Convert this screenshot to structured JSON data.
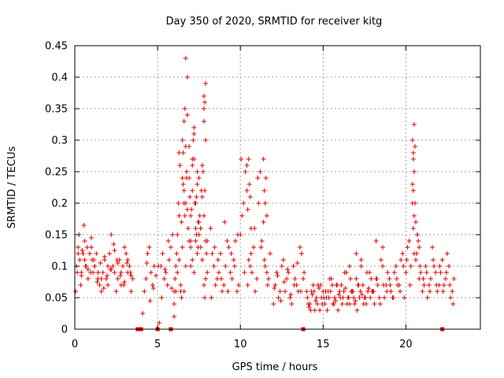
{
  "chart_data": {
    "type": "scatter",
    "title": "Day 350 of 2020, SRMTID for receiver kitg",
    "xlabel": "GPS time / hours",
    "ylabel": "SRMTID / TECUs",
    "xlim": [
      0,
      24.5
    ],
    "ylim": [
      0,
      0.45
    ],
    "x_ticks": [
      0,
      5,
      10,
      15,
      20
    ],
    "x_tick_labels": [
      "0",
      "5",
      "10",
      "15",
      "20"
    ],
    "y_ticks": [
      0,
      0.05,
      0.1,
      0.15,
      0.2,
      0.25,
      0.3,
      0.35,
      0.4,
      0.45
    ],
    "y_tick_labels": [
      "0",
      "0.05",
      "0.1",
      "0.15",
      "0.2",
      "0.25",
      "0.3",
      "0.35",
      "0.4",
      "0.45"
    ],
    "grid": true,
    "marker": "+",
    "color": "#e00000",
    "series": [
      {
        "name": "SRMTID",
        "x": [
          0.05,
          0.1,
          0.2,
          0.25,
          0.3,
          0.4,
          0.5,
          0.55,
          0.6,
          0.7,
          0.8,
          0.9,
          1.0,
          1.05,
          1.1,
          1.2,
          1.3,
          1.4,
          1.5,
          1.6,
          1.7,
          1.8,
          1.9,
          2.0,
          2.1,
          2.2,
          2.3,
          2.4,
          2.5,
          2.6,
          2.7,
          2.8,
          2.9,
          3.0,
          3.1,
          3.2,
          3.3,
          3.4,
          3.5,
          0.15,
          0.35,
          0.45,
          0.65,
          0.75,
          0.95,
          1.15,
          1.35,
          1.55,
          1.75,
          1.95,
          2.15,
          2.35,
          2.55,
          2.75,
          2.95,
          3.15,
          3.35,
          0.2,
          0.4,
          0.6,
          0.8,
          1.0,
          1.2,
          1.4,
          1.6,
          1.8,
          2.0,
          2.2,
          2.4,
          2.6,
          2.8,
          3.0,
          3.2,
          3.4,
          4.1,
          4.2,
          4.3,
          4.4,
          4.5,
          4.6,
          4.7,
          4.8,
          4.9,
          4.35,
          4.55,
          4.75,
          5.1,
          5.2,
          5.3,
          5.4,
          5.5,
          5.6,
          5.7,
          5.8,
          5.9,
          6.0,
          5.25,
          5.45,
          5.65,
          5.85,
          5.05,
          6.0,
          6.1,
          6.2,
          6.3,
          6.4,
          6.5,
          6.6,
          6.7,
          6.8,
          6.9,
          7.0,
          7.1,
          7.2,
          7.3,
          7.4,
          7.5,
          7.6,
          7.7,
          7.8,
          7.9,
          8.0,
          6.05,
          6.15,
          6.25,
          6.35,
          6.45,
          6.55,
          6.65,
          6.75,
          6.85,
          6.95,
          7.05,
          7.15,
          7.25,
          7.35,
          7.45,
          7.55,
          7.65,
          7.75,
          7.85,
          7.95,
          6.1,
          6.3,
          6.5,
          6.7,
          6.9,
          7.1,
          7.3,
          7.5,
          7.7,
          7.9,
          6.2,
          6.4,
          6.6,
          6.8,
          7.0,
          7.2,
          7.4,
          7.6,
          7.8,
          8.0,
          6.5,
          6.6,
          6.7,
          6.8,
          6.9,
          7.0,
          7.1,
          7.2,
          7.3,
          7.4,
          7.5,
          7.6,
          7.7,
          7.8,
          7.9,
          6.3,
          6.45,
          6.55,
          6.65,
          6.75,
          7.0,
          7.1,
          7.35,
          7.45,
          7.8,
          7.85,
          7.9,
          6.0,
          6.6,
          6.7,
          7.2,
          7.8,
          7.85,
          8.2,
          8.4,
          8.6,
          8.8,
          9.0,
          9.2,
          9.4,
          9.6,
          9.8,
          10.0,
          10.2,
          10.4,
          10.6,
          10.8,
          11.0,
          11.2,
          11.4,
          11.6,
          11.8,
          8.3,
          8.5,
          8.7,
          8.9,
          9.1,
          9.3,
          9.5,
          9.7,
          9.9,
          10.1,
          10.3,
          10.5,
          10.7,
          10.9,
          11.1,
          11.3,
          11.5,
          11.7,
          8.25,
          8.45,
          8.65,
          8.85,
          9.05,
          9.25,
          9.45,
          9.65,
          9.85,
          10.05,
          10.25,
          10.45,
          10.65,
          10.85,
          11.05,
          11.25,
          11.45,
          11.65,
          10.4,
          10.5,
          10.55,
          10.6,
          10.45,
          10.65,
          11.4,
          11.5,
          11.6,
          11.45,
          11.55,
          12.0,
          12.2,
          12.4,
          12.6,
          12.8,
          13.0,
          13.2,
          13.4,
          13.6,
          13.8,
          12.1,
          12.3,
          12.5,
          12.7,
          12.9,
          13.1,
          13.3,
          13.5,
          13.7,
          12.05,
          12.25,
          12.45,
          12.65,
          12.85,
          13.05,
          13.25,
          13.45,
          13.65,
          13.85,
          14.0,
          14.2,
          14.4,
          14.6,
          14.8,
          15.0,
          15.2,
          15.4,
          15.6,
          15.8,
          16.0,
          16.2,
          16.4,
          16.6,
          16.8,
          17.0,
          17.2,
          17.4,
          17.6,
          17.8,
          18.0,
          18.2,
          18.4,
          18.6,
          18.8,
          14.1,
          14.3,
          14.5,
          14.7,
          14.9,
          15.1,
          15.3,
          15.5,
          15.7,
          15.9,
          16.1,
          16.3,
          16.5,
          16.7,
          16.9,
          17.1,
          17.3,
          17.5,
          17.7,
          17.9,
          18.1,
          18.3,
          18.5,
          18.7,
          18.9,
          14.05,
          14.25,
          14.45,
          14.65,
          14.85,
          15.05,
          15.25,
          15.45,
          15.65,
          15.85,
          16.05,
          16.25,
          16.45,
          16.65,
          16.85,
          17.05,
          17.25,
          17.45,
          17.65,
          17.85,
          18.05,
          18.25,
          18.45,
          18.65,
          18.85,
          14.15,
          14.35,
          14.55,
          14.75,
          14.95,
          15.15,
          15.35,
          15.55,
          15.75,
          15.95,
          16.15,
          16.35,
          16.55,
          16.75,
          16.95,
          17.15,
          17.35,
          17.55,
          17.75,
          17.95,
          16.6,
          17.0,
          17.3,
          18.2,
          18.6,
          19.0,
          19.2,
          19.4,
          19.6,
          19.8,
          20.0,
          20.2,
          20.4,
          20.6,
          20.8,
          21.0,
          21.2,
          21.4,
          21.6,
          21.8,
          22.0,
          22.2,
          22.4,
          22.6,
          22.8,
          19.1,
          19.3,
          19.5,
          19.7,
          19.9,
          20.1,
          20.3,
          20.5,
          20.7,
          20.9,
          21.1,
          21.3,
          21.5,
          21.7,
          21.9,
          22.1,
          22.3,
          22.5,
          22.7,
          22.9,
          19.05,
          19.25,
          19.45,
          19.65,
          19.85,
          20.05,
          20.25,
          20.45,
          20.65,
          20.85,
          21.05,
          21.25,
          21.45,
          21.65,
          21.85,
          22.05,
          22.25,
          22.45,
          22.65,
          22.85,
          20.4,
          20.45,
          20.5,
          20.55,
          20.5,
          20.45,
          20.4,
          20.5,
          20.55,
          20.45,
          20.6,
          20.7,
          20.75,
          20.8,
          3.8,
          4.0,
          5.0,
          5.8,
          13.8,
          22.2
        ],
        "y": [
          0.06,
          0.1,
          0.13,
          0.15,
          0.11,
          0.09,
          0.12,
          0.165,
          0.14,
          0.1,
          0.08,
          0.12,
          0.145,
          0.11,
          0.09,
          0.1,
          0.12,
          0.08,
          0.07,
          0.06,
          0.09,
          0.11,
          0.08,
          0.1,
          0.12,
          0.15,
          0.1,
          0.09,
          0.06,
          0.08,
          0.11,
          0.07,
          0.1,
          0.13,
          0.12,
          0.09,
          0.1,
          0.06,
          0.08,
          0.09,
          0.07,
          0.125,
          0.1,
          0.13,
          0.09,
          0.11,
          0.075,
          0.105,
          0.065,
          0.085,
          0.095,
          0.135,
          0.11,
          0.085,
          0.07,
          0.105,
          0.09,
          0.12,
          0.085,
          0.11,
          0.095,
          0.13,
          0.1,
          0.09,
          0.08,
          0.115,
          0.07,
          0.095,
          0.125,
          0.105,
          0.09,
          0.075,
          0.11,
          0.085,
          0.025,
          0.06,
          0.08,
          0.12,
          0.13,
          0.09,
          0.07,
          0.1,
          0.085,
          0.105,
          0.045,
          0.065,
          0.01,
          0.1,
          0.12,
          0.08,
          0.09,
          0.07,
          0.11,
          0.13,
          0.15,
          0.06,
          0.05,
          0.095,
          0.14,
          0.065,
          0.1,
          0.02,
          0.1,
          0.15,
          0.28,
          0.06,
          0.13,
          0.33,
          0.29,
          0.19,
          0.24,
          0.18,
          0.22,
          0.27,
          0.14,
          0.12,
          0.24,
          0.16,
          0.26,
          0.37,
          0.3,
          0.09,
          0.08,
          0.12,
          0.2,
          0.26,
          0.17,
          0.23,
          0.35,
          0.25,
          0.16,
          0.21,
          0.19,
          0.3,
          0.2,
          0.15,
          0.13,
          0.18,
          0.22,
          0.25,
          0.36,
          0.12,
          0.06,
          0.18,
          0.24,
          0.43,
          0.14,
          0.26,
          0.16,
          0.15,
          0.11,
          0.08,
          0.09,
          0.07,
          0.2,
          0.4,
          0.1,
          0.32,
          0.25,
          0.13,
          0.18,
          0.14,
          0.3,
          0.22,
          0.2,
          0.34,
          0.29,
          0.14,
          0.27,
          0.31,
          0.2,
          0.23,
          0.17,
          0.16,
          0.21,
          0.33,
          0.39,
          0.11,
          0.05,
          0.28,
          0.18,
          0.24,
          0.13,
          0.11,
          0.21,
          0.17,
          0.35,
          0.22,
          0.14,
          0.04,
          0.06,
          0.1,
          0.09,
          0.07,
          0.05,
          0.16,
          0.1,
          0.08,
          0.12,
          0.07,
          0.14,
          0.09,
          0.11,
          0.06,
          0.15,
          0.2,
          0.22,
          0.1,
          0.13,
          0.08,
          0.25,
          0.17,
          0.09,
          0.12,
          0.12,
          0.07,
          0.09,
          0.06,
          0.1,
          0.13,
          0.08,
          0.14,
          0.07,
          0.18,
          0.25,
          0.11,
          0.09,
          0.06,
          0.2,
          0.14,
          0.1,
          0.08,
          0.05,
          0.13,
          0.11,
          0.08,
          0.17,
          0.06,
          0.12,
          0.1,
          0.15,
          0.27,
          0.09,
          0.07,
          0.12,
          0.16,
          0.24,
          0.13,
          0.11,
          0.07,
          0.26,
          0.27,
          0.23,
          0.21,
          0.19,
          0.16,
          0.27,
          0.2,
          0.18,
          0.22,
          0.24,
          0.04,
          0.09,
          0.06,
          0.11,
          0.08,
          0.05,
          0.1,
          0.07,
          0.13,
          0.08,
          0.07,
          0.05,
          0.1,
          0.06,
          0.09,
          0.04,
          0.08,
          0.06,
          0.12,
          0.065,
          0.085,
          0.045,
          0.075,
          0.095,
          0.055,
          0.07,
          0.105,
          0.06,
          0.09,
          0.06,
          0.04,
          0.07,
          0.05,
          0.03,
          0.06,
          0.05,
          0.08,
          0.04,
          0.07,
          0.06,
          0.05,
          0.09,
          0.04,
          0.06,
          0.08,
          0.05,
          0.07,
          0.04,
          0.09,
          0.06,
          0.08,
          0.05,
          0.1,
          0.07,
          0.04,
          0.06,
          0.03,
          0.07,
          0.05,
          0.04,
          0.06,
          0.08,
          0.05,
          0.03,
          0.07,
          0.09,
          0.05,
          0.06,
          0.04,
          0.07,
          0.1,
          0.05,
          0.06,
          0.08,
          0.04,
          0.07,
          0.11,
          0.05,
          0.09,
          0.05,
          0.03,
          0.06,
          0.04,
          0.07,
          0.05,
          0.03,
          0.06,
          0.04,
          0.07,
          0.05,
          0.06,
          0.04,
          0.08,
          0.05,
          0.03,
          0.06,
          0.04,
          0.09,
          0.05,
          0.06,
          0.08,
          0.04,
          0.07,
          0.06,
          0.035,
          0.055,
          0.045,
          0.065,
          0.04,
          0.06,
          0.05,
          0.07,
          0.045,
          0.055,
          0.04,
          0.065,
          0.05,
          0.06,
          0.045,
          0.07,
          0.055,
          0.05,
          0.065,
          0.06,
          0.1,
          0.12,
          0.11,
          0.14,
          0.13,
          0.08,
          0.05,
          0.1,
          0.07,
          0.12,
          0.09,
          0.14,
          0.2,
          0.11,
          0.08,
          0.06,
          0.1,
          0.07,
          0.13,
          0.09,
          0.07,
          0.11,
          0.08,
          0.1,
          0.06,
          0.06,
          0.09,
          0.07,
          0.11,
          0.05,
          0.13,
          0.1,
          0.12,
          0.15,
          0.09,
          0.07,
          0.05,
          0.08,
          0.1,
          0.06,
          0.09,
          0.07,
          0.12,
          0.05,
          0.08,
          0.07,
          0.05,
          0.08,
          0.06,
          0.1,
          0.11,
          0.07,
          0.16,
          0.12,
          0.1,
          0.08,
          0.09,
          0.06,
          0.11,
          0.07,
          0.1,
          0.06,
          0.09,
          0.07,
          0.04,
          0.3,
          0.28,
          0.325,
          0.29,
          0.25,
          0.22,
          0.23,
          0.18,
          0.2,
          0.27,
          0.17,
          0.15,
          0.14,
          0.13,
          0,
          0,
          0,
          0,
          0,
          0
        ]
      }
    ]
  }
}
